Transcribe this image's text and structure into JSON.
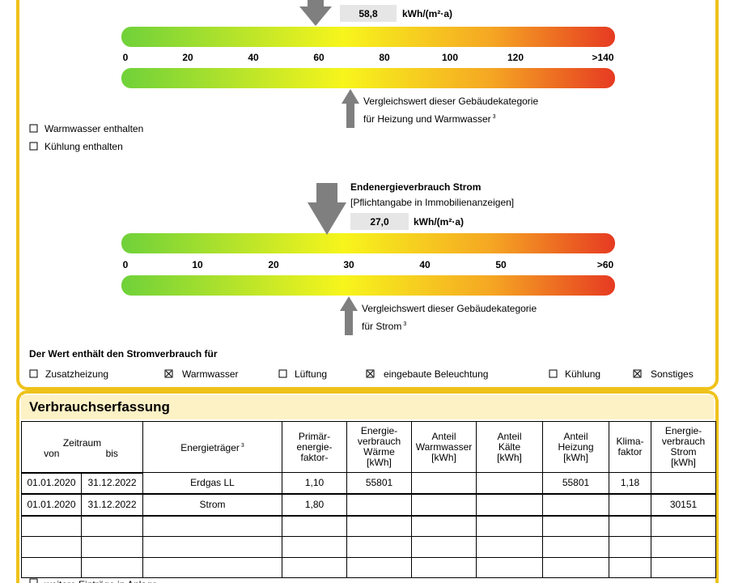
{
  "heat": {
    "value": "58,8",
    "unit": "kWh/(m²·a)",
    "ticks": [
      "0",
      "20",
      "40",
      "60",
      "80",
      "100",
      "120",
      ">140"
    ],
    "comparison": [
      "Vergleichswert dieser Gebäudekategorie",
      "für Heizung und Warmwasser"
    ],
    "footnote": "3",
    "options": [
      {
        "label": "Warmwasser enthalten",
        "checked": false
      },
      {
        "label": "Kühlung enthalten",
        "checked": false
      }
    ]
  },
  "strom": {
    "title": "Endenergieverbrauch Strom",
    "note": "[Pflichtangabe in Immobilienanzeigen]",
    "value": "27,0",
    "unit": "kWh/(m²·a)",
    "ticks": [
      "0",
      "10",
      "20",
      "30",
      "40",
      "50",
      ">60"
    ],
    "comparison": [
      "Vergleichswert dieser Gebäudekategorie",
      "für Strom"
    ],
    "footnote": "3"
  },
  "stromverbrauch": {
    "title": "Der Wert enthält den Stromverbrauch für",
    "options": [
      {
        "label": "Zusatzheizung",
        "checked": false
      },
      {
        "label": "Warmwasser",
        "checked": true
      },
      {
        "label": "Lüftung",
        "checked": false
      },
      {
        "label": "eingebaute Beleuchtung",
        "checked": true
      },
      {
        "label": "Kühlung",
        "checked": false
      },
      {
        "label": "Sonstiges",
        "checked": true
      }
    ]
  },
  "verbrauchserfassung": {
    "title": "Verbrauchserfassung",
    "header": {
      "zeitraum": "Zeitraum",
      "von": "von",
      "bis": "bis",
      "energietraeger": "Energieträger",
      "footnote": "3",
      "columns": [
        "Primär-\nenergie-\nfaktor-",
        "Energie-\nverbrauch\nWärme\n[kWh]",
        "Anteil\nWarmwasser\n[kWh]",
        "Anteil\nKälte\n[kWh]",
        "Anteil\nHeizung\n[kWh]",
        "Klima-\nfaktor",
        "Energie-\nverbrauch\nStrom\n[kWh]"
      ]
    },
    "rows": [
      [
        "01.01.2020",
        "31.12.2022",
        "Erdgas LL",
        "1,10",
        "55801",
        null,
        null,
        "55801",
        "1,18",
        null
      ],
      [
        "01.01.2020",
        "31.12.2022",
        "Strom",
        "1,80",
        null,
        null,
        null,
        null,
        null,
        "30151"
      ]
    ]
  },
  "footer": {
    "label": "weitere Einträge in Anlage"
  }
}
